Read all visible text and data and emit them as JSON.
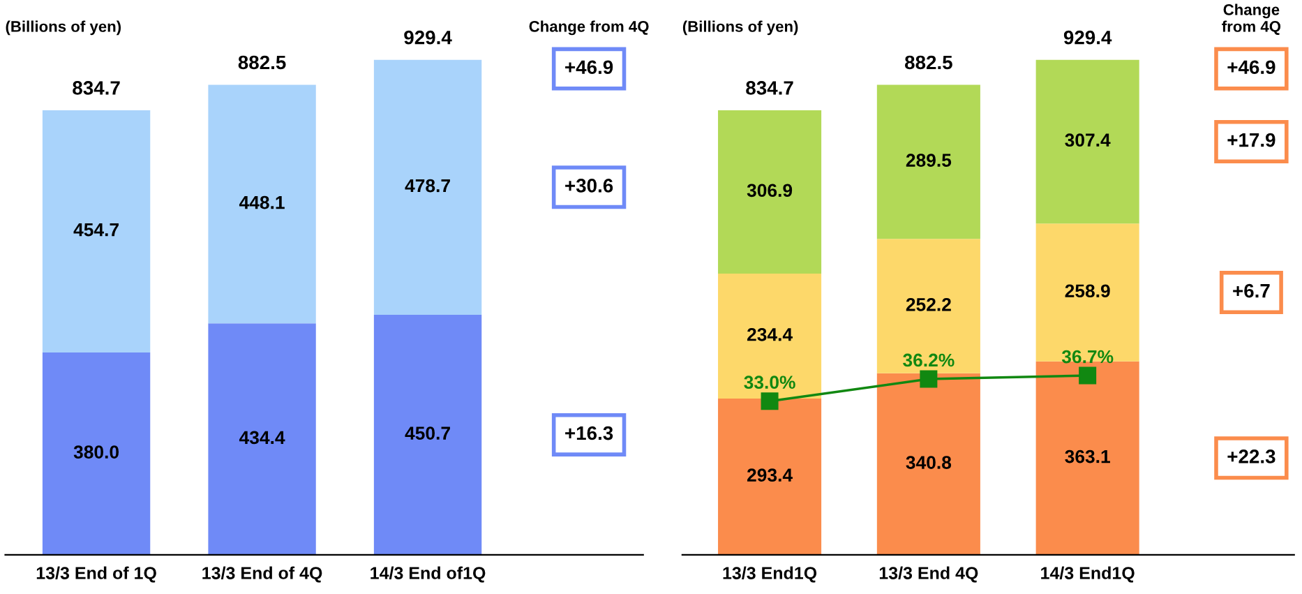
{
  "chart_data": [
    {
      "type": "bar",
      "stacked": true,
      "ylabel": "(Billions of yen)",
      "categories": [
        "13/3 End of 1Q",
        "13/3 End of 4Q",
        "14/3 End of1Q"
      ],
      "series": [
        {
          "color": "#6f8af7",
          "values": [
            380.0,
            434.4,
            450.7
          ],
          "value_labels": [
            "380.0",
            "434.4",
            "450.7"
          ]
        },
        {
          "color": "#a9d3fb",
          "values": [
            454.7,
            448.1,
            478.7
          ],
          "value_labels": [
            "454.7",
            "448.1",
            "478.7"
          ]
        }
      ],
      "totals": [
        "834.7",
        "882.5",
        "929.4"
      ],
      "tick_labels": "x",
      "grid": false,
      "legend": false,
      "annotations": [
        "Change from 4Q",
        "+46.9",
        "+30.6",
        "+16.3"
      ]
    },
    {
      "type": "bar",
      "stacked": true,
      "ylabel": "(Billions of yen)",
      "categories": [
        "13/3 End1Q",
        "13/3 End 4Q",
        "14/3 End1Q"
      ],
      "series": [
        {
          "color": "#fb8c4c",
          "values": [
            293.4,
            340.8,
            363.1
          ],
          "value_labels": [
            "293.4",
            "340.8",
            "363.1"
          ]
        },
        {
          "color": "#fdd86a",
          "values": [
            234.4,
            252.2,
            258.9
          ],
          "value_labels": [
            "234.4",
            "252.2",
            "258.9"
          ]
        },
        {
          "color": "#b2d957",
          "values": [
            306.9,
            289.5,
            307.4
          ],
          "value_labels": [
            "306.9",
            "289.5",
            "307.4"
          ]
        },
        {
          "type": "line",
          "axis": "y2",
          "color": "#118811",
          "values": [
            33.0,
            36.2,
            36.7
          ],
          "value_labels": [
            "33.0%",
            "36.2%",
            "36.7%"
          ],
          "marker": "square",
          "line_style": "solid"
        }
      ],
      "totals": [
        "834.7",
        "882.5",
        "929.4"
      ],
      "tick_labels": "x",
      "grid": false,
      "legend": false,
      "annotations": [
        "Change\nfrom 4Q",
        "+46.9",
        "+17.9",
        "+6.7",
        "+22.3"
      ]
    }
  ]
}
